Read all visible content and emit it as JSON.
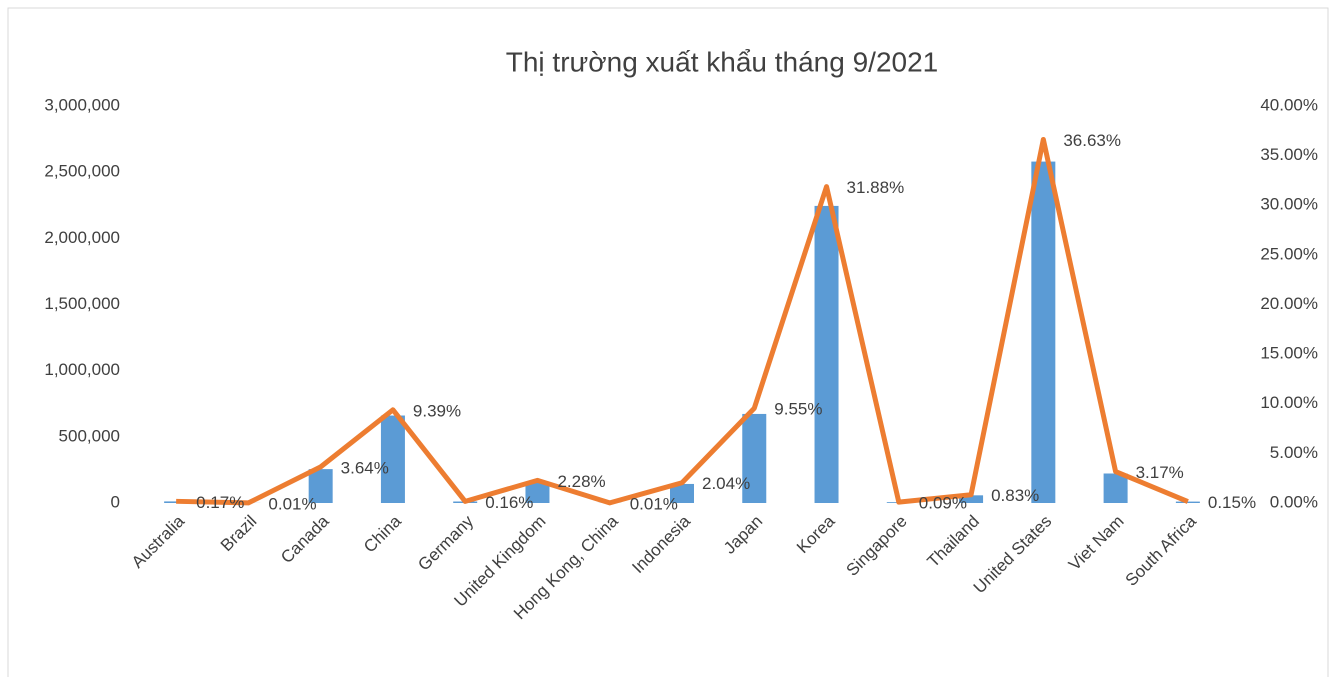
{
  "chart_data": {
    "type": "combo",
    "title": "Thị trường xuất khẩu tháng 9/2021",
    "categories": [
      "Australia",
      "Brazil",
      "Canada",
      "China",
      "Germany",
      "United Kingdom",
      "Hong Kong, China",
      "Indonesia",
      "Japan",
      "Korea",
      "Singapore",
      "Thailand",
      "United States",
      "Viet Nam",
      "South Africa"
    ],
    "series": [
      {
        "type": "bar",
        "color": "#5b9bd5",
        "values": [
          12000,
          700,
          256000,
          661000,
          11300,
          160600,
          700,
          144000,
          673000,
          2245000,
          6300,
          58000,
          2580000,
          223000,
          10600
        ]
      },
      {
        "type": "line",
        "axis": "y2",
        "color": "#ed7d31",
        "values": [
          0.17,
          0.01,
          3.64,
          9.39,
          0.16,
          2.28,
          0.01,
          2.04,
          9.55,
          31.88,
          0.09,
          0.83,
          36.63,
          3.17,
          0.15
        ],
        "value_labels": [
          "0.17%",
          "0.01%",
          "3.64%",
          "9.39%",
          "0.16%",
          "2.28%",
          "0.01%",
          "2.04%",
          "9.55%",
          "31.88%",
          "0.09%",
          "0.83%",
          "36.63%",
          "3.17%",
          "0.15%"
        ]
      }
    ],
    "ylim": [
      0,
      3000000
    ],
    "yticks": [
      0,
      {
        "value": 500000,
        "label": "500,000"
      },
      {
        "value": 1000000,
        "label": "1,000,000"
      },
      {
        "value": 1500000,
        "label": "1,500,000"
      },
      {
        "value": 2000000,
        "label": "2,000,000"
      },
      {
        "value": 2500000,
        "label": "2,500,000"
      },
      {
        "value": 3000000,
        "label": "3,000,000"
      }
    ],
    "y2lim": [
      0,
      40
    ],
    "y2ticks": [
      {
        "value": 0,
        "label": "0.00%"
      },
      {
        "value": 5,
        "label": "5.00%"
      },
      {
        "value": 10,
        "label": "10.00%"
      },
      {
        "value": 15,
        "label": "15.00%"
      },
      {
        "value": 20,
        "label": "20.00%"
      },
      {
        "value": 25,
        "label": "25.00%"
      },
      {
        "value": 30,
        "label": "30.00%"
      },
      {
        "value": 35,
        "label": "35.00%"
      },
      {
        "value": 40,
        "label": "40.00%"
      }
    ],
    "grid": false
  }
}
